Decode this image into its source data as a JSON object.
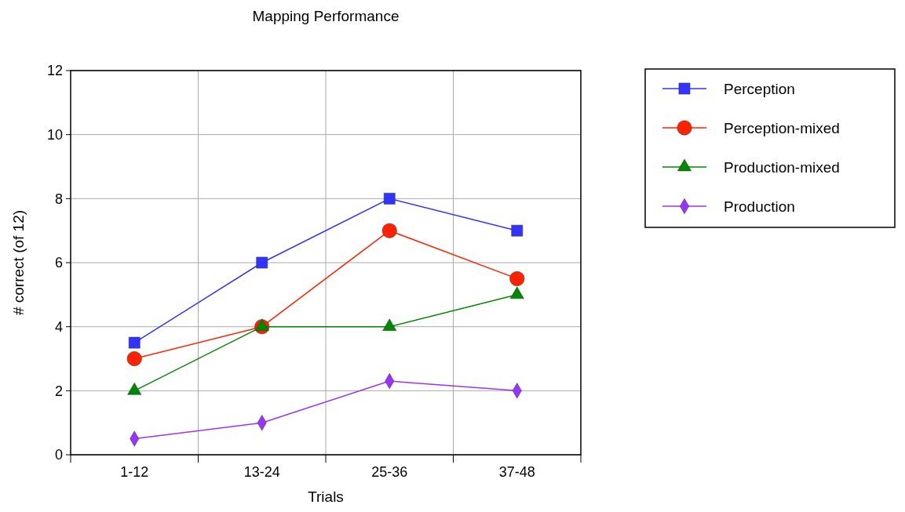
{
  "chart_data": {
    "type": "line",
    "title": "Mapping Performance",
    "xlabel": "Trials",
    "ylabel": "# correct (of 12)",
    "categories": [
      "1-12",
      "13-24",
      "25-36",
      "37-48"
    ],
    "series": [
      {
        "name": "Perception",
        "color": "#3333ff",
        "marker": "square",
        "values": [
          3.5,
          6,
          8,
          7
        ]
      },
      {
        "name": "Perception-mixed",
        "color": "#ff2200",
        "marker": "circle",
        "values": [
          3,
          4,
          7,
          5.5
        ]
      },
      {
        "name": "Production-mixed",
        "color": "#008800",
        "marker": "triangle",
        "values": [
          2,
          4,
          4,
          5
        ]
      },
      {
        "name": "Production",
        "color": "#9933ff",
        "marker": "diamond",
        "values": [
          0.5,
          1,
          2.3,
          2
        ]
      }
    ],
    "ylim": [
      0,
      12
    ],
    "yticks": [
      0,
      2,
      4,
      6,
      8,
      10,
      12
    ],
    "grid": true,
    "legend": "right",
    "line_style": "solid"
  }
}
